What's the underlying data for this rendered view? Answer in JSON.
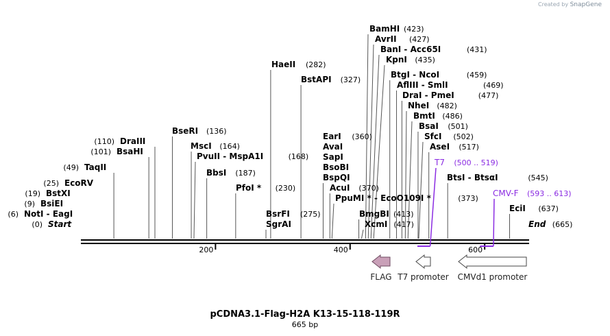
{
  "watermark": {
    "prefix": "Created by",
    "brand": "SnapGene"
  },
  "plasmid": {
    "name": "pCDNA3.1-Flag-H2A K13-15-118-119R",
    "length_label": "665 bp",
    "length": 665
  },
  "ruler": {
    "ticks": [
      200,
      400,
      600
    ]
  },
  "colors": {
    "feature_fill": "#c9a0b8",
    "site_label": "#5b1d9e",
    "axis": "#000000"
  },
  "sites": [
    {
      "pos": 0,
      "number": "(0)",
      "enzyme": "Start",
      "style": "start-end"
    },
    {
      "pos": 6,
      "number": "(6)",
      "enzyme": "NotI  -  EagI",
      "style": "enzyme"
    },
    {
      "pos": 9,
      "number": "(9)",
      "enzyme": "BsiEI",
      "style": "enzyme"
    },
    {
      "pos": 19,
      "number": "(19)",
      "enzyme": "BstXI",
      "style": "enzyme"
    },
    {
      "pos": 25,
      "number": "(25)",
      "enzyme": "EcoRV",
      "style": "enzyme"
    },
    {
      "pos": 49,
      "number": "(49)",
      "enzyme": "TaqII",
      "style": "enzyme"
    },
    {
      "pos": 101,
      "number": "(101)",
      "enzyme": "BsaHI",
      "style": "enzyme"
    },
    {
      "pos": 110,
      "number": "(110)",
      "enzyme": "DraIII",
      "style": "enzyme"
    },
    {
      "pos": 136,
      "number": "(136)",
      "enzyme": "BseRI",
      "style": "enzyme"
    },
    {
      "pos": 164,
      "number": "(164)",
      "enzyme": "MscI",
      "style": "enzyme"
    },
    {
      "pos": 168,
      "number": "(168)",
      "enzyme": "PvuII  -  MspA1I",
      "style": "enzyme"
    },
    {
      "pos": 187,
      "number": "(187)",
      "enzyme": "BbsI",
      "style": "enzyme"
    },
    {
      "pos": 230,
      "number": "(230)",
      "enzyme": "PfoI *",
      "style": "enzyme"
    },
    {
      "pos": 282,
      "number": "(282)",
      "enzyme": "HaeII",
      "style": "enzyme"
    },
    {
      "pos": 275,
      "number": "(275)",
      "enzyme": "BsrFI\nSgrAI",
      "style": "enzyme"
    },
    {
      "pos": 327,
      "number": "(327)",
      "enzyme": "BstAPI",
      "style": "enzyme"
    },
    {
      "pos": 360,
      "number": "(360)",
      "enzyme": "EarI\nAvaI\nSapI\nBsoBI\nBspQI",
      "style": "enzyme"
    },
    {
      "pos": 370,
      "number": "(370)",
      "enzyme": "AcuI",
      "style": "enzyme"
    },
    {
      "pos": 373,
      "number": "(373)",
      "enzyme": "PpuMI *  -  EcoO109I *",
      "style": "enzyme"
    },
    {
      "pos": 413,
      "number": "(413)",
      "enzyme": "BmgBI",
      "style": "enzyme"
    },
    {
      "pos": 417,
      "number": "(417)",
      "enzyme": "XcmI",
      "style": "enzyme"
    },
    {
      "pos": 423,
      "number": "(423)",
      "enzyme": "BamHI",
      "style": "enzyme"
    },
    {
      "pos": 427,
      "number": "(427)",
      "enzyme": "AvrII",
      "style": "enzyme"
    },
    {
      "pos": 431,
      "number": "(431)",
      "enzyme": "BanI  -  Acc65I",
      "style": "enzyme"
    },
    {
      "pos": 435,
      "number": "(435)",
      "enzyme": "KpnI",
      "style": "enzyme"
    },
    {
      "pos": 459,
      "number": "(459)",
      "enzyme": "BtgI  -  NcoI",
      "style": "enzyme"
    },
    {
      "pos": 469,
      "number": "(469)",
      "enzyme": "AflIII  -  SmlI",
      "style": "enzyme"
    },
    {
      "pos": 477,
      "number": "(477)",
      "enzyme": "DraI  -  PmeI",
      "style": "enzyme"
    },
    {
      "pos": 482,
      "number": "(482)",
      "enzyme": "NheI",
      "style": "enzyme"
    },
    {
      "pos": 486,
      "number": "(486)",
      "enzyme": "BmtI",
      "style": "enzyme"
    },
    {
      "pos": 501,
      "number": "(501)",
      "enzyme": "BsaI",
      "style": "enzyme"
    },
    {
      "pos": 502,
      "number": "(502)",
      "enzyme": "SfcI",
      "style": "enzyme"
    },
    {
      "pos": 517,
      "number": "(517)",
      "enzyme": "AseI",
      "style": "enzyme"
    },
    {
      "pos": 545,
      "number": "(545)",
      "enzyme": "BtsI  -  BtsαI",
      "style": "enzyme"
    },
    {
      "pos": 637,
      "number": "(637)",
      "enzyme": "EciI",
      "style": "enzyme"
    },
    {
      "pos": 665,
      "number": "(665)",
      "enzyme": "End",
      "style": "start-end"
    }
  ],
  "primers": [
    {
      "name": "T7",
      "range": "(500 .. 519)",
      "start": 500,
      "end": 519
    },
    {
      "name": "CMV-F",
      "range": "(593 .. 613)",
      "start": 593,
      "end": 613
    }
  ],
  "features": [
    {
      "name": "FLAG",
      "direction": "reverse",
      "start": 435,
      "end": 459,
      "filled": true
    },
    {
      "name": "T7 promoter",
      "direction": "reverse",
      "start": 500,
      "end": 519,
      "filled": false
    },
    {
      "name": "CMVd1 promoter",
      "direction": "reverse",
      "start": 564,
      "end": 665,
      "filled": false
    }
  ]
}
